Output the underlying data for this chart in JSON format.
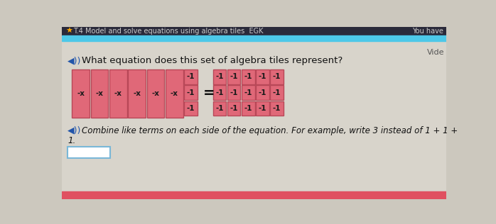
{
  "title": "T.4 Model and solve equations using algebra tiles  EGK",
  "top_bar_color": "#4dc8e8",
  "bg_color": "#ccc8be",
  "content_bg": "#d8d4cb",
  "question_text": "What equation does this set of algebra tiles represent?",
  "combine_text": "Combine like terms on each side of the equation. For example, write 3 instead of 1 + 1 +",
  "combine_text2": "1.",
  "video_text": "Vide",
  "you_have_text": "You have",
  "tile_pink": "#e06878",
  "tile_border": "#b84858",
  "tile_text_color": "#1a1a1a",
  "left_x_labels": [
    "-x",
    "-x",
    "-x",
    "-x",
    "-x",
    "-x"
  ],
  "left_small_labels": [
    "-1",
    "-1",
    "-1"
  ],
  "right_tiles": [
    [
      "-1",
      "-1",
      "-1",
      "-1",
      "-1"
    ],
    [
      "-1",
      "-1",
      "-1",
      "-1",
      "-1"
    ],
    [
      "-1",
      "-1",
      "-1",
      "-1",
      "-1"
    ]
  ],
  "input_box_color": "#ffffff",
  "input_box_border": "#7ab8d8",
  "bottom_bar_color": "#e05060",
  "speaker_color": "#2255aa",
  "star_color": "#ffaa00"
}
